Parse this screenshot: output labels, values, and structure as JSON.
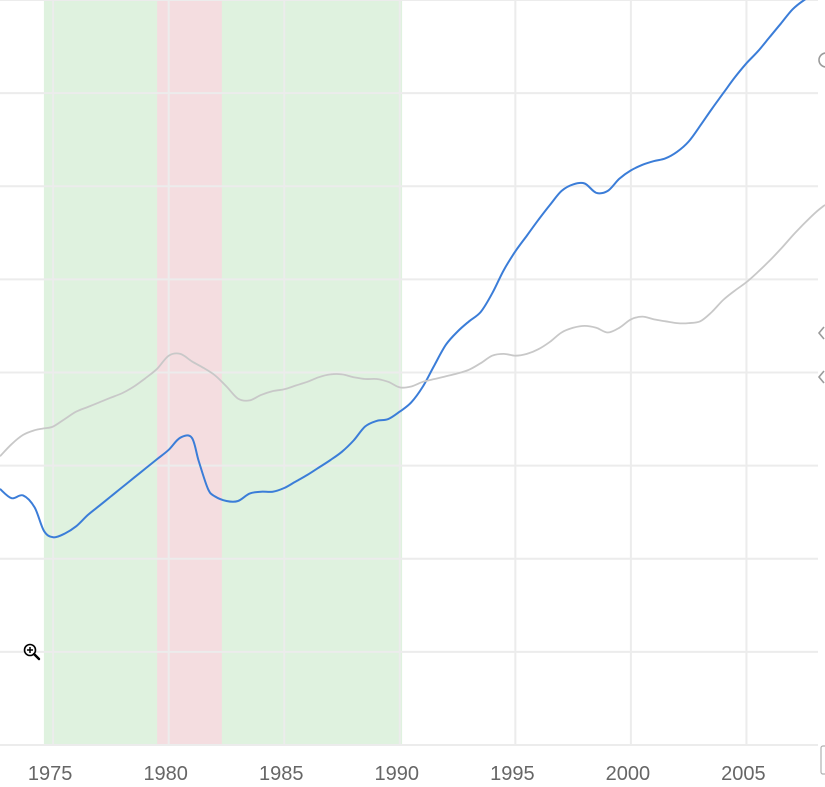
{
  "chart_data": {
    "type": "line",
    "xlim": [
      1972.7,
      2008.4
    ],
    "ylim": [
      0,
      8
    ],
    "grid": true,
    "x_ticks": [
      1975,
      1980,
      1985,
      1990,
      1995,
      2000,
      2005
    ],
    "x_tick_labels": [
      "1975",
      "1980",
      "1985",
      "1990",
      "1995",
      "2000",
      "2005"
    ],
    "y_gridlines": [
      1,
      2,
      3,
      4,
      5,
      6,
      7,
      8
    ],
    "bands": [
      {
        "from": 1974.6,
        "to": 1990.1,
        "color": "#dff2df"
      },
      {
        "from": 1979.5,
        "to": 1982.3,
        "color": "#f4dde0"
      }
    ],
    "series": [
      {
        "color": "#3b7dd8",
        "x": [
          1972.7,
          1973.2,
          1973.7,
          1974.2,
          1974.6,
          1975.0,
          1975.5,
          1976.0,
          1976.5,
          1977.0,
          1977.5,
          1978.0,
          1978.5,
          1979.0,
          1979.5,
          1980.0,
          1980.5,
          1981.0,
          1981.3,
          1981.7,
          1982.0,
          1982.5,
          1983.0,
          1983.5,
          1984.0,
          1984.5,
          1985.0,
          1985.5,
          1986.0,
          1986.5,
          1987.0,
          1987.5,
          1988.0,
          1988.5,
          1989.0,
          1989.5,
          1990.0,
          1990.5,
          1991.0,
          1991.5,
          1992.0,
          1992.5,
          1993.0,
          1993.5,
          1994.0,
          1994.5,
          1995.0,
          1995.5,
          1996.0,
          1996.5,
          1997.0,
          1997.5,
          1998.0,
          1998.5,
          1999.0,
          1999.5,
          2000.0,
          2000.5,
          2001.0,
          2001.5,
          2002.0,
          2002.5,
          2003.0,
          2003.5,
          2004.0,
          2004.5,
          2005.0,
          2005.5,
          2006.0,
          2006.5,
          2007.0,
          2007.5,
          2008.0,
          2008.4
        ],
        "values": [
          2.75,
          2.65,
          2.68,
          2.55,
          2.3,
          2.23,
          2.27,
          2.35,
          2.47,
          2.57,
          2.67,
          2.77,
          2.87,
          2.97,
          3.07,
          3.17,
          3.3,
          3.3,
          3.05,
          2.75,
          2.67,
          2.62,
          2.62,
          2.7,
          2.72,
          2.72,
          2.76,
          2.83,
          2.9,
          2.98,
          3.06,
          3.15,
          3.27,
          3.42,
          3.48,
          3.5,
          3.58,
          3.68,
          3.85,
          4.08,
          4.3,
          4.44,
          4.55,
          4.65,
          4.85,
          5.1,
          5.3,
          5.47,
          5.64,
          5.8,
          5.95,
          6.02,
          6.03,
          5.93,
          5.95,
          6.08,
          6.17,
          6.23,
          6.27,
          6.3,
          6.37,
          6.48,
          6.65,
          6.83,
          7.0,
          7.17,
          7.32,
          7.45,
          7.6,
          7.75,
          7.9,
          8.0,
          8.07,
          8.12
        ]
      },
      {
        "color": "#c8c8c8",
        "x": [
          1972.7,
          1973.2,
          1973.7,
          1974.2,
          1974.6,
          1975.0,
          1975.5,
          1976.0,
          1976.5,
          1977.0,
          1977.5,
          1978.0,
          1978.5,
          1979.0,
          1979.5,
          1980.0,
          1980.5,
          1981.0,
          1981.5,
          1982.0,
          1982.5,
          1983.0,
          1983.5,
          1984.0,
          1984.5,
          1985.0,
          1985.5,
          1986.0,
          1986.5,
          1987.0,
          1987.5,
          1988.0,
          1988.5,
          1989.0,
          1989.5,
          1990.0,
          1990.5,
          1991.0,
          1991.5,
          1992.0,
          1992.5,
          1993.0,
          1993.5,
          1994.0,
          1994.5,
          1995.0,
          1995.5,
          1996.0,
          1996.5,
          1997.0,
          1997.5,
          1998.0,
          1998.5,
          1999.0,
          1999.5,
          2000.0,
          2000.5,
          2001.0,
          2001.5,
          2002.0,
          2002.5,
          2003.0,
          2003.5,
          2004.0,
          2004.5,
          2005.0,
          2005.5,
          2006.0,
          2006.5,
          2007.0,
          2007.5,
          2008.0,
          2008.4
        ],
        "values": [
          3.1,
          3.23,
          3.33,
          3.38,
          3.4,
          3.42,
          3.5,
          3.58,
          3.63,
          3.68,
          3.73,
          3.78,
          3.85,
          3.94,
          4.04,
          4.18,
          4.2,
          4.12,
          4.05,
          3.97,
          3.85,
          3.72,
          3.7,
          3.76,
          3.8,
          3.82,
          3.86,
          3.9,
          3.95,
          3.98,
          3.98,
          3.95,
          3.93,
          3.93,
          3.9,
          3.84,
          3.85,
          3.9,
          3.93,
          3.96,
          3.99,
          4.03,
          4.1,
          4.18,
          4.2,
          4.18,
          4.2,
          4.25,
          4.33,
          4.43,
          4.48,
          4.5,
          4.48,
          4.43,
          4.48,
          4.57,
          4.6,
          4.57,
          4.55,
          4.53,
          4.53,
          4.55,
          4.65,
          4.78,
          4.88,
          4.97,
          5.08,
          5.2,
          5.33,
          5.47,
          5.6,
          5.72,
          5.8
        ]
      }
    ]
  },
  "ui": {
    "zoom_icon": "zoom-in-icon",
    "edge_icons": [
      "settings-icon",
      "chevron-left-icon",
      "chevron-left-icon"
    ]
  }
}
